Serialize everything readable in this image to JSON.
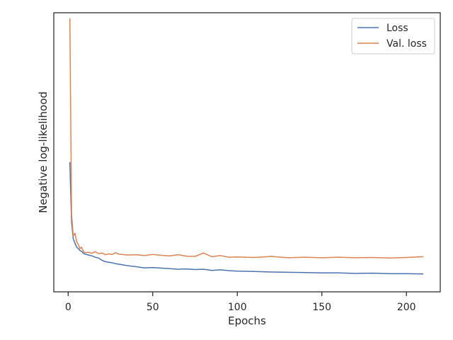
{
  "chart_data": {
    "type": "line",
    "title": "",
    "xlabel": "Epochs",
    "ylabel": "Negative log-likelihood",
    "xlim": [
      -8.5,
      220
    ],
    "ylim": [
      0,
      100
    ],
    "y_ticks_shown": false,
    "x_ticks": [
      0,
      50,
      100,
      150,
      200
    ],
    "grid": false,
    "legend": "top-right",
    "colors": {
      "loss": "#4c72b0",
      "val_loss": "#dd8452",
      "axes": "#262626"
    },
    "series": [
      {
        "name": "Loss",
        "x": [
          1,
          2,
          3,
          4,
          5,
          6,
          7,
          8,
          9,
          10,
          12,
          14,
          16,
          18,
          20,
          22,
          24,
          26,
          28,
          30,
          35,
          40,
          45,
          50,
          55,
          60,
          65,
          70,
          75,
          80,
          85,
          90,
          95,
          100,
          110,
          120,
          130,
          140,
          150,
          160,
          170,
          180,
          190,
          200,
          210
        ],
        "values": [
          46.5,
          25,
          19,
          17.5,
          16,
          15.5,
          14.8,
          14.5,
          13.8,
          13.5,
          13.2,
          12.9,
          12.4,
          12.1,
          11.3,
          10.8,
          10.6,
          10.4,
          10.1,
          9.9,
          9.4,
          9.0,
          8.6,
          8.7,
          8.5,
          8.3,
          8.1,
          8.2,
          8.0,
          8.1,
          7.7,
          7.9,
          7.6,
          7.4,
          7.3,
          7.1,
          7.0,
          6.9,
          6.8,
          6.8,
          6.6,
          6.7,
          6.5,
          6.5,
          6.4
        ]
      },
      {
        "name": "Val. loss",
        "x": [
          1,
          2,
          3,
          4,
          5,
          6,
          7,
          8,
          9,
          10,
          12,
          14,
          16,
          18,
          20,
          22,
          24,
          26,
          28,
          30,
          35,
          40,
          45,
          50,
          55,
          60,
          65,
          70,
          75,
          80,
          85,
          90,
          95,
          100,
          110,
          120,
          130,
          140,
          150,
          160,
          170,
          180,
          190,
          200,
          210
        ],
        "values": [
          98,
          28,
          20,
          21,
          18,
          17,
          15.5,
          16,
          14.5,
          14,
          14.2,
          13.8,
          14.4,
          13.7,
          13.9,
          13.3,
          13.6,
          13.4,
          14,
          13.5,
          13.2,
          13.3,
          13.0,
          13.4,
          13.1,
          12.9,
          13.3,
          12.8,
          12.7,
          13.9,
          12.6,
          13.0,
          12.4,
          12.5,
          12.3,
          12.7,
          12.2,
          12.4,
          12.2,
          12.4,
          12.2,
          12.3,
          12.1,
          12.3,
          12.6
        ]
      }
    ]
  }
}
